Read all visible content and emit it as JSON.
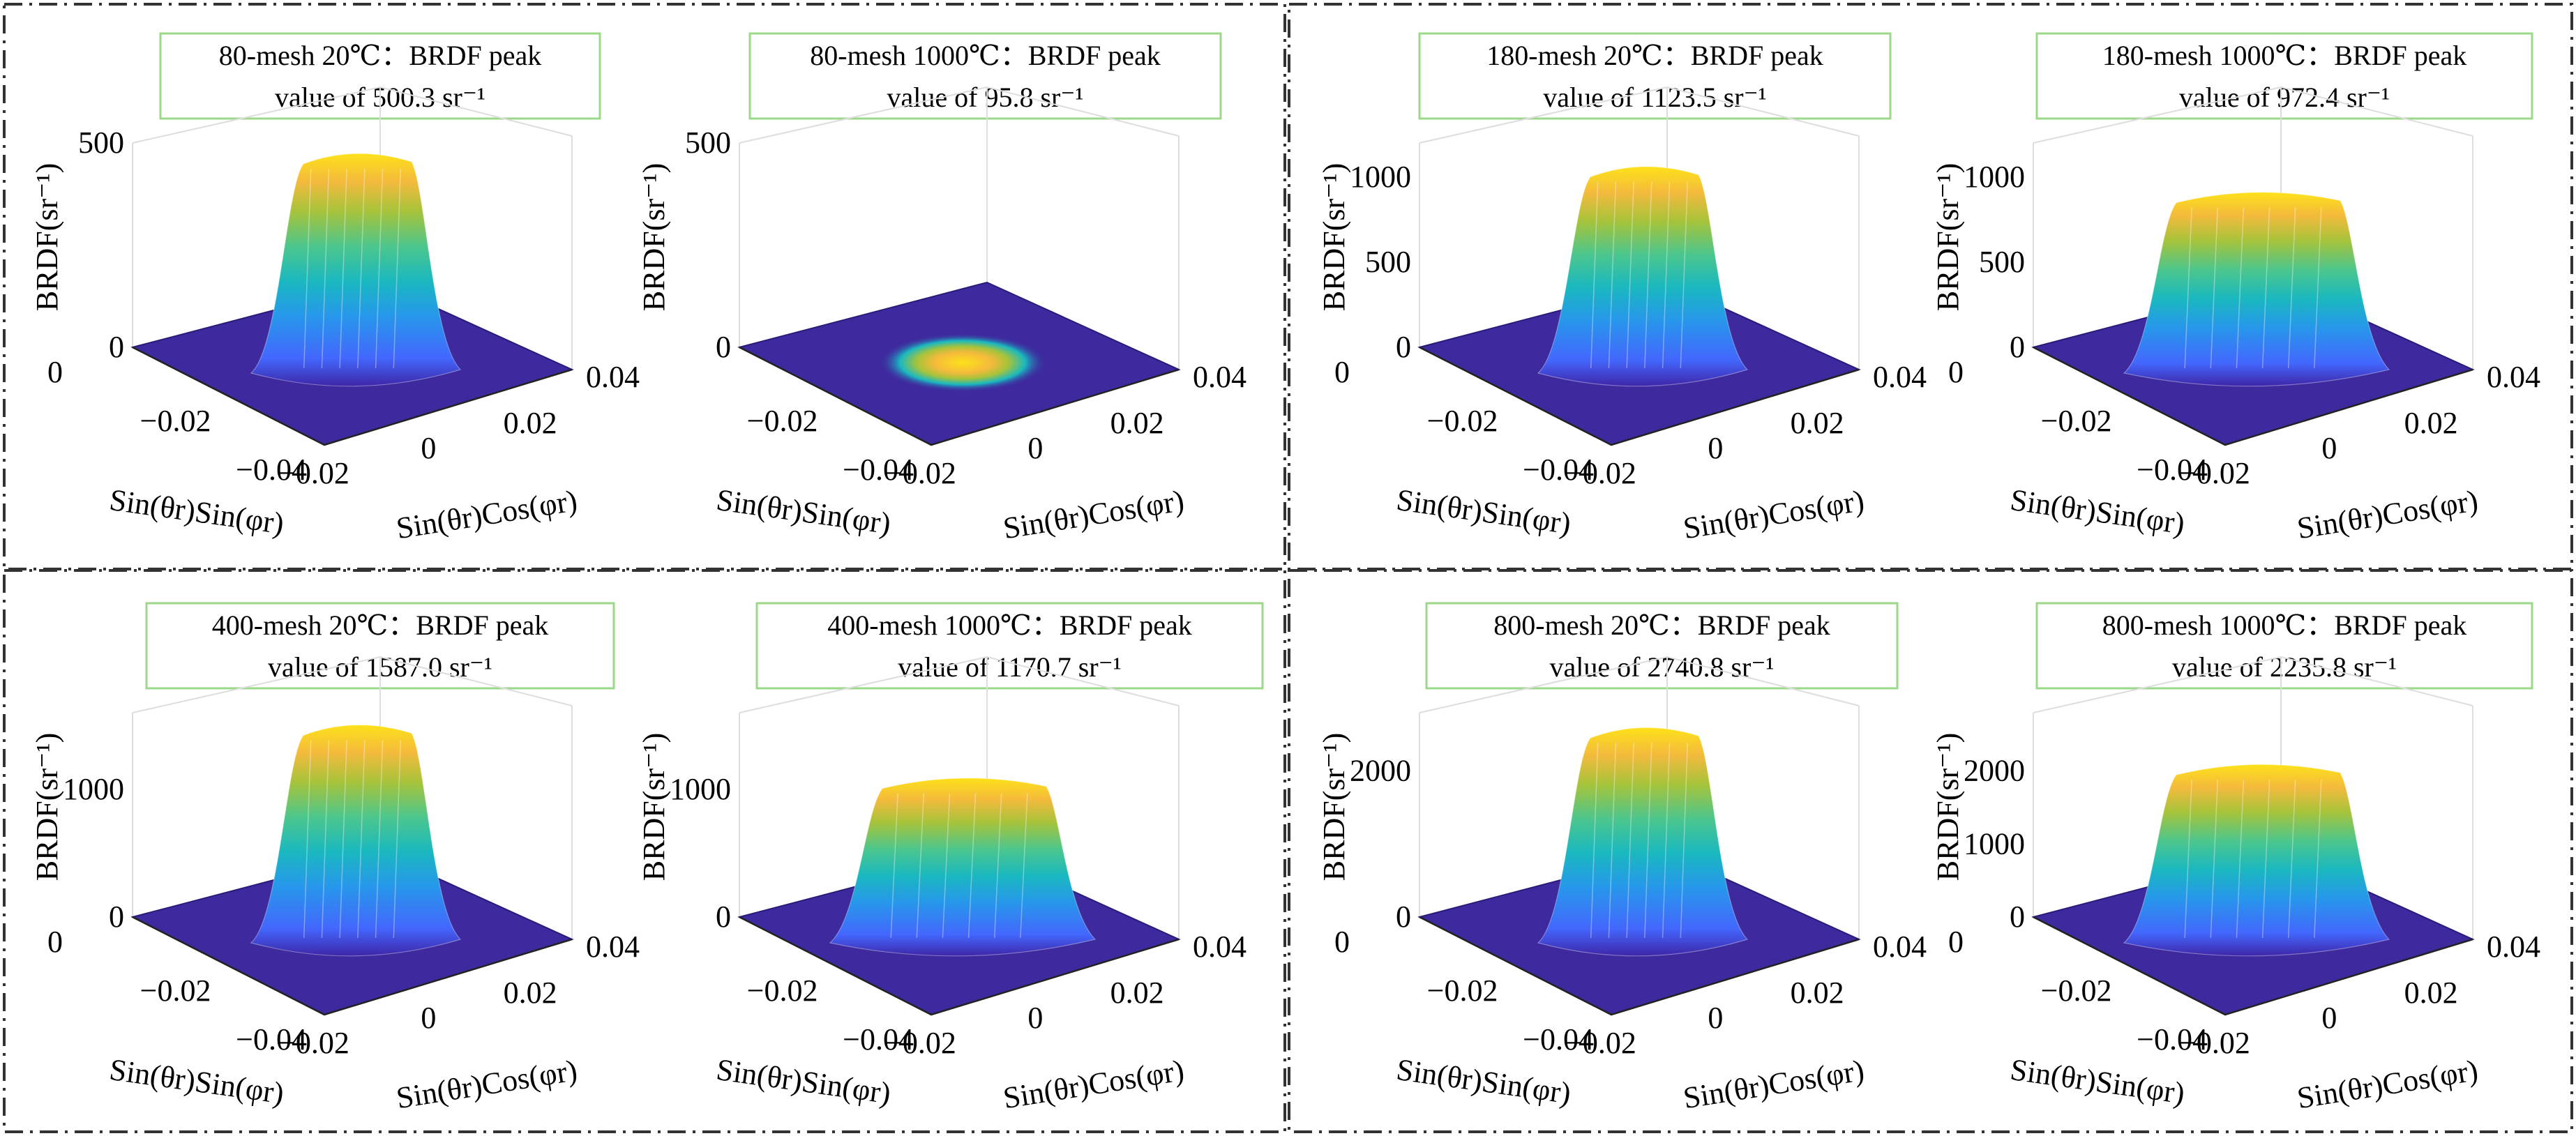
{
  "colors": {
    "frame": "#333333",
    "title_border": "#9bd88a",
    "floor": "#3e2a9e",
    "colormap": [
      "#3e26a8",
      "#4367fd",
      "#2797eb",
      "#1ab8c0",
      "#4cc68d",
      "#a6c33b",
      "#f4ba3c",
      "#fde11a",
      "#f9fb15"
    ]
  },
  "chart_data": [
    {
      "type": "surface",
      "mesh": "80-mesh",
      "temperature": "20℃",
      "title_line1": "80-mesh 20℃：BRDF peak",
      "title_line2": "value of 500.3 sr⁻¹",
      "peak": 500.3,
      "zlim": [
        0,
        500
      ],
      "zticks": [
        "0",
        "500"
      ],
      "zlabel": "BRDF(sr⁻¹)",
      "xlabel": "Sin(θr)Sin(φr)",
      "ylabel": "Sin(θr)Cos(φr)",
      "xticks": [
        "0",
        "−0.02",
        "−0.04"
      ],
      "yticks": [
        "−0.02",
        "0",
        "0.02",
        "0.04"
      ],
      "shape": "narrow"
    },
    {
      "type": "surface",
      "mesh": "80-mesh",
      "temperature": "1000℃",
      "title_line1": "80-mesh 1000℃：BRDF peak",
      "title_line2": "value of 95.8 sr⁻¹",
      "peak": 95.8,
      "zlim": [
        0,
        500
      ],
      "zticks": [
        "0",
        "500"
      ],
      "zlabel": "BRDF(sr⁻¹)",
      "xlabel": "Sin(θr)Sin(φr)",
      "ylabel": "Sin(θr)Cos(φr)",
      "xticks": [
        "−0.02",
        "−0.04"
      ],
      "yticks": [
        "−0.02",
        "0",
        "0.02",
        "0.04"
      ],
      "shape": "flat"
    },
    {
      "type": "surface",
      "mesh": "180-mesh",
      "temperature": "20℃",
      "title_line1": "180-mesh 20℃：BRDF peak",
      "title_line2": "value of 1123.5 sr⁻¹",
      "peak": 1123.5,
      "zlim": [
        0,
        1200
      ],
      "zticks": [
        "0",
        "500",
        "1000"
      ],
      "zlabel": "BRDF(sr⁻¹)",
      "xlabel": "Sin(θr)Sin(φr)",
      "ylabel": "Sin(θr)Cos(φr)",
      "xticks": [
        "0",
        "−0.02",
        "−0.04"
      ],
      "yticks": [
        "−0.02",
        "0",
        "0.02",
        "0.04"
      ],
      "shape": "narrow"
    },
    {
      "type": "surface",
      "mesh": "180-mesh",
      "temperature": "1000℃",
      "title_line1": "180-mesh 1000℃：BRDF peak",
      "title_line2": "value of 972.4 sr⁻¹",
      "peak": 972.4,
      "zlim": [
        0,
        1200
      ],
      "zticks": [
        "0",
        "500",
        "1000"
      ],
      "zlabel": "BRDF(sr⁻¹)",
      "xlabel": "Sin(θr)Sin(φr)",
      "ylabel": "Sin(θr)Cos(φr)",
      "xticks": [
        "0",
        "−0.02",
        "−0.04"
      ],
      "yticks": [
        "−0.02",
        "0",
        "0.02",
        "0.04"
      ],
      "shape": "wide"
    },
    {
      "type": "surface",
      "mesh": "400-mesh",
      "temperature": "20℃",
      "title_line1": "400-mesh 20℃：BRDF peak",
      "title_line2": "value of 1587.0 sr⁻¹",
      "peak": 1587.0,
      "zlim": [
        0,
        1600
      ],
      "zticks": [
        "0",
        "1000"
      ],
      "zlabel": "BRDF(sr⁻¹)",
      "xlabel": "Sin(θr)Sin(φr)",
      "ylabel": "Sin(θr)Cos(φr)",
      "xticks": [
        "0",
        "−0.02",
        "−0.04"
      ],
      "yticks": [
        "−0.02",
        "0",
        "0.02",
        "0.04"
      ],
      "shape": "narrow"
    },
    {
      "type": "surface",
      "mesh": "400-mesh",
      "temperature": "1000℃",
      "title_line1": "400-mesh 1000℃：BRDF peak",
      "title_line2": "value of 1170.7 sr⁻¹",
      "peak": 1170.7,
      "zlim": [
        0,
        1600
      ],
      "zticks": [
        "0",
        "1000"
      ],
      "zlabel": "BRDF(sr⁻¹)",
      "xlabel": "Sin(θr)Sin(φr)",
      "ylabel": "Sin(θr)Cos(φr)",
      "xticks": [
        "−0.02",
        "−0.04"
      ],
      "yticks": [
        "−0.02",
        "0",
        "0.02",
        "0.04"
      ],
      "shape": "wide"
    },
    {
      "type": "surface",
      "mesh": "800-mesh",
      "temperature": "20℃",
      "title_line1": "800-mesh 20℃：BRDF peak",
      "title_line2": "value of 2740.8 sr⁻¹",
      "peak": 2740.8,
      "zlim": [
        0,
        2800
      ],
      "zticks": [
        "0",
        "2000"
      ],
      "zlabel": "BRDF(sr⁻¹)",
      "xlabel": "Sin(θr)Sin(φr)",
      "ylabel": "Sin(θr)Cos(φr)",
      "xticks": [
        "0",
        "−0.02",
        "−0.04"
      ],
      "yticks": [
        "−0.02",
        "0",
        "0.02",
        "0.04"
      ],
      "shape": "narrow"
    },
    {
      "type": "surface",
      "mesh": "800-mesh",
      "temperature": "1000℃",
      "title_line1": "800-mesh 1000℃：BRDF peak",
      "title_line2": "value of 2235.8 sr⁻¹",
      "peak": 2235.8,
      "zlim": [
        0,
        2800
      ],
      "zticks": [
        "0",
        "1000",
        "2000"
      ],
      "zlabel": "BRDF(sr⁻¹)",
      "xlabel": "Sin(θr)Sin(φr)",
      "ylabel": "Sin(θr)Cos(φr)",
      "xticks": [
        "0",
        "−0.02",
        "−0.04"
      ],
      "yticks": [
        "−0.02",
        "0",
        "0.02",
        "0.04"
      ],
      "shape": "wide"
    }
  ]
}
